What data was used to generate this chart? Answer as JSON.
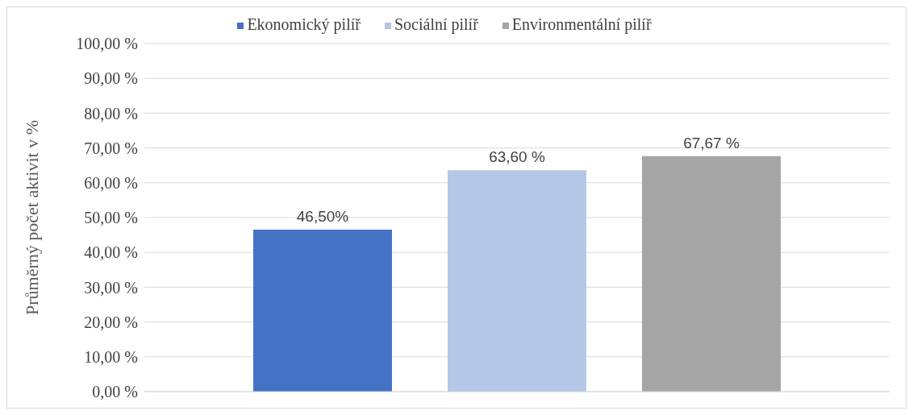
{
  "chart_data": {
    "type": "bar",
    "ylabel": "Průměrný počet aktivit v %",
    "categories": [
      null
    ],
    "series": [
      {
        "name": "Ekonomický pilíř",
        "color": "#4472c4",
        "values": [
          46.5
        ],
        "value_labels": [
          "46,50%"
        ]
      },
      {
        "name": "Sociální pilíř",
        "color": "#b4c7e7",
        "values": [
          63.6
        ],
        "value_labels": [
          "63,60 %"
        ]
      },
      {
        "name": "Environmentální pilíř",
        "color": "#a5a5a5",
        "values": [
          67.67
        ],
        "value_labels": [
          "67,67 %"
        ]
      }
    ],
    "ylim": [
      0,
      100
    ],
    "yticks": [
      {
        "value": 0,
        "label": "0,00 %"
      },
      {
        "value": 10,
        "label": "10,00 %"
      },
      {
        "value": 20,
        "label": "20,00 %"
      },
      {
        "value": 30,
        "label": "30,00 %"
      },
      {
        "value": 40,
        "label": "40,00 %"
      },
      {
        "value": 50,
        "label": "50,00 %"
      },
      {
        "value": 60,
        "label": "60,00 %"
      },
      {
        "value": 70,
        "label": "70,00 %"
      },
      {
        "value": 80,
        "label": "80,00 %"
      },
      {
        "value": 90,
        "label": "90,00 %"
      },
      {
        "value": 100,
        "label": "100,00 %"
      }
    ],
    "grid": "y",
    "legend": "top"
  }
}
